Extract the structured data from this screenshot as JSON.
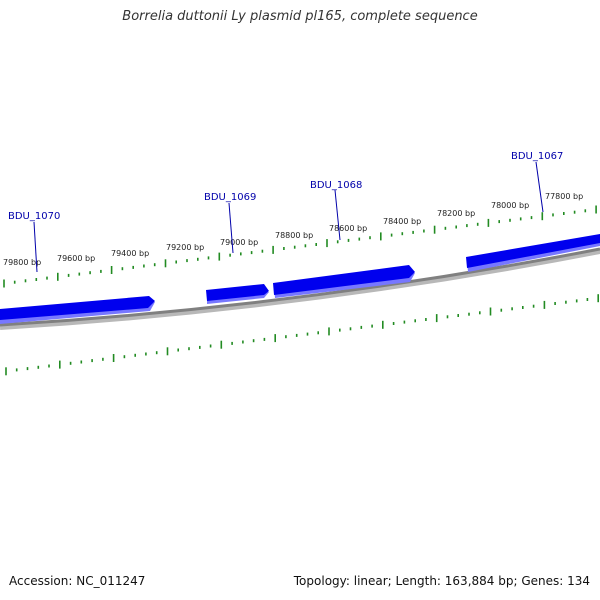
{
  "title": "Borrelia duttonii Ly plasmid pl165, complete sequence",
  "footer": {
    "accession": "Accession: NC_011247",
    "summary": "Topology: linear; Length: 163,884 bp; Genes: 134"
  },
  "ruler": {
    "labels": [
      "79800 bp",
      "79600 bp",
      "79400 bp",
      "79200 bp",
      "79000 bp",
      "78800 bp",
      "78600 bp",
      "78400 bp",
      "78200 bp",
      "78000 bp",
      "77800 bp"
    ]
  },
  "genes": [
    {
      "name": "BDU_1070",
      "strand": "forward"
    },
    {
      "name": "BDU_1069",
      "strand": "forward"
    },
    {
      "name": "BDU_1068",
      "strand": "forward"
    },
    {
      "name": "BDU_1067",
      "strand": "forward"
    }
  ],
  "colors": {
    "gene_fill": "#0000ee",
    "gene_shadow": "#7777ff",
    "backbone": "#808080",
    "tick": "#228b22",
    "gene_label": "#0000aa",
    "ruler_label": "#222222"
  }
}
